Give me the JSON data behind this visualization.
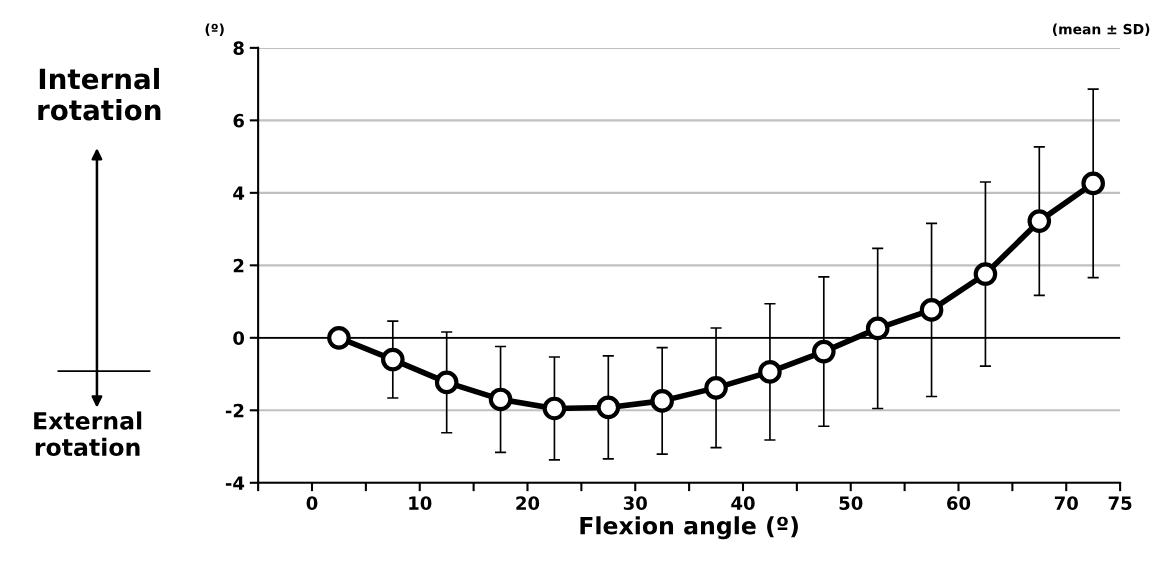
{
  "chart_data": {
    "type": "line",
    "xlabel": "Flexion angle (º)",
    "ylabel": "(º)",
    "annotations": [
      "(mean ± SD)",
      "Internal rotation",
      "External rotation"
    ],
    "x": [
      2.5,
      7.5,
      12.5,
      17.5,
      22.5,
      27.5,
      32.5,
      37.5,
      42.5,
      47.5,
      52.5,
      57.5,
      62.5,
      67.5,
      72.5
    ],
    "series": [
      {
        "color": "#000000",
        "values": [
          0,
          -0.6,
          -1.23,
          -1.7,
          -1.95,
          -1.92,
          -1.74,
          -1.38,
          -0.94,
          -0.38,
          0.26,
          0.77,
          1.76,
          3.22,
          4.26
        ],
        "errors": [
          null,
          1.06,
          1.39,
          1.46,
          1.42,
          1.42,
          1.47,
          1.65,
          1.88,
          2.06,
          2.21,
          2.39,
          2.54,
          2.05,
          2.6
        ]
      }
    ],
    "xlim": [
      -5,
      75
    ],
    "xticks": [
      {
        "value": -5,
        "label": null
      },
      0,
      {
        "value": 5,
        "label": null
      },
      10,
      {
        "value": 15,
        "label": null
      },
      20,
      {
        "value": 25,
        "label": null
      },
      30,
      {
        "value": 35,
        "label": null
      },
      40,
      {
        "value": 45,
        "label": null
      },
      50,
      {
        "value": 55,
        "label": null
      },
      60,
      {
        "value": 65,
        "label": null
      },
      70,
      75
    ],
    "ylim": [
      -4,
      8
    ],
    "yticks": [
      -4,
      -2,
      0,
      2,
      4,
      6,
      8
    ],
    "grid": "y",
    "marker": "circle",
    "line_style": "solid",
    "legend": false,
    "ref_lines": [
      {
        "axis": "y",
        "value": 0,
        "color": "#000000"
      }
    ]
  }
}
